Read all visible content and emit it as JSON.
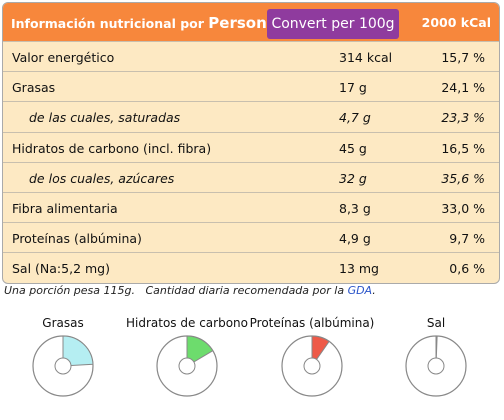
{
  "header": {
    "title": "Información nutricional por",
    "title_unit": "Person",
    "button": "Convert per 100g",
    "reference": "2000 kCal"
  },
  "table": {
    "rows": [
      [
        "Valor energético",
        "314 kcal",
        "15,7 %"
      ],
      [
        "Grasas",
        "17 g",
        "24,1 %"
      ],
      [
        "de las cuales, saturadas",
        "4,7 g",
        "23,3 %"
      ],
      [
        "Hidratos de carbono (incl. fibra)",
        "45 g",
        "16,5 %"
      ],
      [
        "de los cuales, azúcares",
        "32 g",
        "35,6 %"
      ],
      [
        "Fibra alimentaria",
        "8,3 g",
        "33,0 %"
      ],
      [
        "Proteínas (albúmina)",
        "4,9 g",
        "9,7 %"
      ],
      [
        "Sal (Na:5,2 mg)",
        "13 mg",
        "0,6 %"
      ]
    ]
  },
  "footnote": {
    "portion": "Una porción pesa 115g.",
    "gda_text": "Cantidad diaria recomendada por la",
    "gda_link": "GDA",
    "gda_end": "."
  },
  "pies": [
    {
      "label": "Grasas",
      "value": 24.1,
      "color": "#b5eef2"
    },
    {
      "label": "Hidratos de carbono",
      "value": 16.5,
      "color": "#6ddc6d"
    },
    {
      "label": "Proteínas (albúmina)",
      "value": 9.7,
      "color": "#ee5a48"
    },
    {
      "label": "Sal",
      "value": 0.6,
      "color": "#999999"
    }
  ]
}
